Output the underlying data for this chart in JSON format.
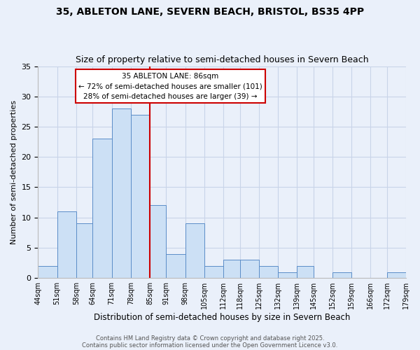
{
  "title": "35, ABLETON LANE, SEVERN BEACH, BRISTOL, BS35 4PP",
  "subtitle": "Size of property relative to semi-detached houses in Severn Beach",
  "xlabel": "Distribution of semi-detached houses by size in Severn Beach",
  "ylabel": "Number of semi-detached properties",
  "bin_labels": [
    "44sqm",
    "51sqm",
    "58sqm",
    "64sqm",
    "71sqm",
    "78sqm",
    "85sqm",
    "91sqm",
    "98sqm",
    "105sqm",
    "112sqm",
    "118sqm",
    "125sqm",
    "132sqm",
    "139sqm",
    "145sqm",
    "152sqm",
    "159sqm",
    "166sqm",
    "172sqm",
    "179sqm"
  ],
  "bin_edges": [
    44,
    51,
    58,
    64,
    71,
    78,
    85,
    91,
    98,
    105,
    112,
    118,
    125,
    132,
    139,
    145,
    152,
    159,
    166,
    172,
    179
  ],
  "bar_heights": [
    2,
    11,
    9,
    23,
    28,
    27,
    12,
    4,
    9,
    2,
    3,
    3,
    2,
    1,
    2,
    0,
    1,
    0,
    0,
    1
  ],
  "bar_color": "#cce0f5",
  "bar_edgecolor": "#5b8dc8",
  "grid_color": "#c8d4e8",
  "bg_color": "#eaf0fa",
  "vline_x": 85,
  "vline_color": "#cc0000",
  "annotation_title": "35 ABLETON LANE: 86sqm",
  "annotation_line1": "← 72% of semi-detached houses are smaller (101)",
  "annotation_line2": "28% of semi-detached houses are larger (39) →",
  "annotation_box_color": "#ffffff",
  "annotation_box_edgecolor": "#cc0000",
  "ylim": [
    0,
    35
  ],
  "yticks": [
    0,
    5,
    10,
    15,
    20,
    25,
    30,
    35
  ],
  "footer1": "Contains HM Land Registry data © Crown copyright and database right 2025.",
  "footer2": "Contains public sector information licensed under the Open Government Licence v3.0.",
  "title_fontsize": 10,
  "subtitle_fontsize": 9
}
